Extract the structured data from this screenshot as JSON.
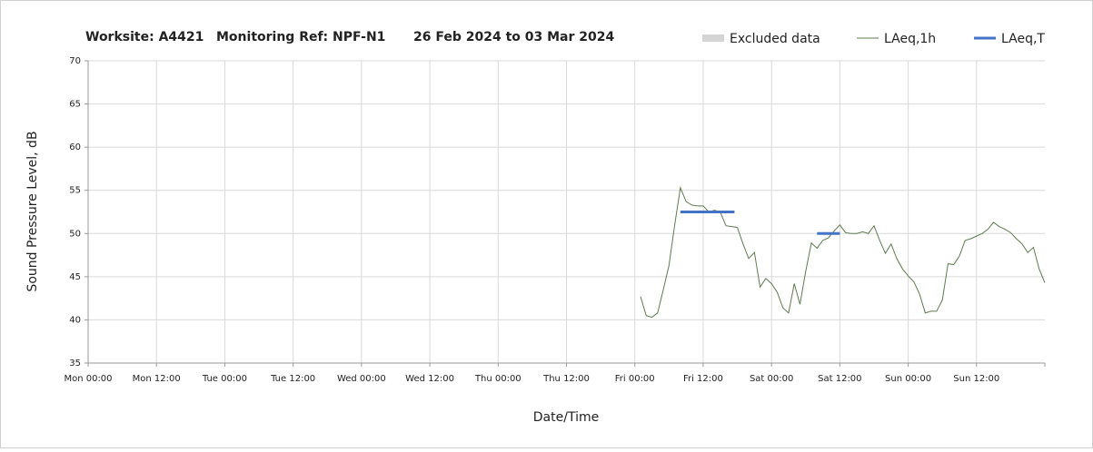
{
  "chart_data": {
    "type": "line",
    "title_parts": [
      "Worksite: A4421",
      "Monitoring Ref: NPF-N1",
      "26 Feb 2024 to 03 Mar 2024"
    ],
    "xlabel": "Date/Time",
    "ylabel": "Sound Pressure Level, dB",
    "xlim": [
      0,
      168
    ],
    "ylim": [
      35,
      70
    ],
    "yticks": [
      35,
      40,
      45,
      50,
      55,
      60,
      65,
      70
    ],
    "xticks": [
      {
        "value": 0,
        "label": "Mon 00:00"
      },
      {
        "value": 12,
        "label": "Mon 12:00"
      },
      {
        "value": 24,
        "label": "Tue 00:00"
      },
      {
        "value": 36,
        "label": "Tue 12:00"
      },
      {
        "value": 48,
        "label": "Wed 00:00"
      },
      {
        "value": 60,
        "label": "Wed 12:00"
      },
      {
        "value": 72,
        "label": "Thu 00:00"
      },
      {
        "value": 84,
        "label": "Thu 12:00"
      },
      {
        "value": 96,
        "label": "Fri 00:00"
      },
      {
        "value": 108,
        "label": "Fri 12:00"
      },
      {
        "value": 120,
        "label": "Sat 00:00"
      },
      {
        "value": 132,
        "label": "Sat 12:00"
      },
      {
        "value": 144,
        "label": "Sun 00:00"
      },
      {
        "value": 156,
        "label": "Sun 12:00"
      }
    ],
    "grid": true,
    "legend": "top-right",
    "series": [
      {
        "name": "Excluded data",
        "color": "#d4d4d4",
        "kind": "band",
        "x": [],
        "values": []
      },
      {
        "name": "LAeq,1h",
        "color": "#5f7a4f",
        "kind": "thin",
        "x": [
          97,
          98,
          99,
          100,
          101,
          102,
          103,
          104,
          105,
          106,
          107,
          108,
          109,
          110,
          111,
          112,
          113,
          114,
          115,
          116,
          117,
          118,
          119,
          120,
          121,
          122,
          123,
          124,
          125,
          126,
          127,
          128,
          129,
          130,
          131,
          132,
          133,
          134,
          135,
          136,
          137,
          138,
          139,
          140,
          141,
          142,
          143,
          144,
          145,
          146,
          147,
          148,
          149,
          150,
          151,
          152,
          153,
          154,
          155,
          156,
          157,
          158,
          159,
          160,
          161,
          162,
          163,
          164,
          165,
          166,
          167,
          168
        ],
        "values": [
          42.7,
          40.5,
          40.3,
          40.8,
          43.5,
          46.3,
          51,
          55.3,
          53.7,
          53.3,
          53.2,
          53.2,
          52.5,
          52.7,
          52.5,
          50.9,
          50.8,
          50.7,
          48.8,
          47.1,
          47.8,
          43.8,
          44.8,
          44.2,
          43.2,
          41.4,
          40.8,
          44.2,
          41.8,
          45.6,
          48.9,
          48.3,
          49.2,
          49.5,
          50.3,
          51,
          50.1,
          50,
          50,
          50.2,
          50,
          50.9,
          49.2,
          47.7,
          48.8,
          47.1,
          45.9,
          45.1,
          44.4,
          43,
          40.8,
          41,
          41,
          42.3,
          46.5,
          46.4,
          47.4,
          49.2,
          49.4,
          49.7,
          50,
          50.5,
          51.3,
          50.8,
          50.5,
          50.1,
          49.4,
          48.8,
          47.8,
          48.4,
          45.9,
          44.3
        ]
      },
      {
        "name": "LAeq,T",
        "color": "#4472c4",
        "kind": "thick",
        "x": [
          104,
          113.5,
          120,
          128,
          132
        ],
        "values": [
          52.5,
          52.5,
          null,
          50,
          50
        ]
      }
    ]
  }
}
